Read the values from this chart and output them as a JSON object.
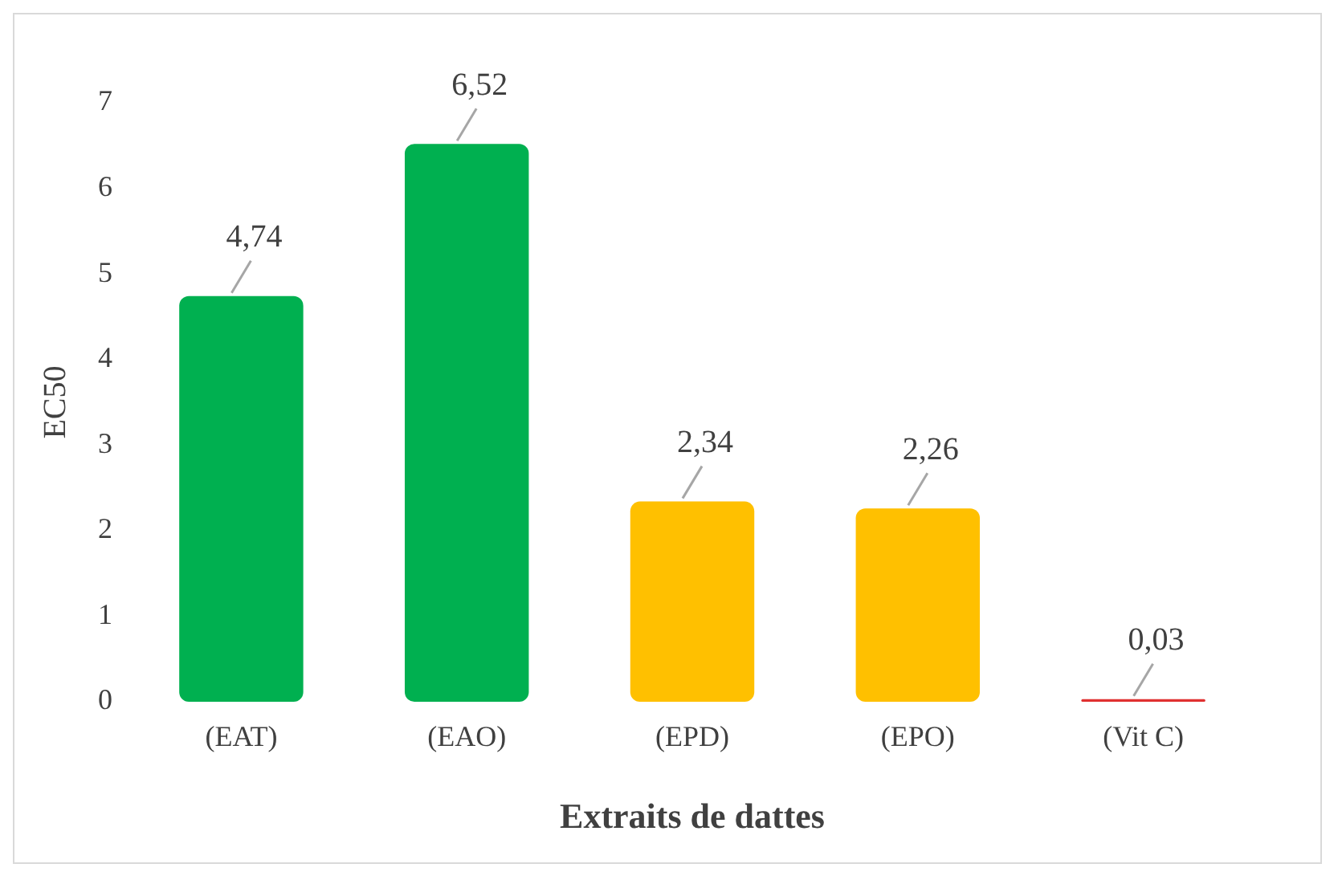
{
  "chart_data": {
    "type": "bar",
    "xlabel": "Extraits de dattes",
    "ylabel": "EC50",
    "categories": [
      "(EAT)",
      "(EAO)",
      "(EPD)",
      "(EPO)",
      "(Vit C)"
    ],
    "values": [
      4.74,
      6.52,
      2.34,
      2.26,
      0.03
    ],
    "value_labels": [
      "4,74",
      "6,52",
      "2,34",
      "2,26",
      "0,03"
    ],
    "colors": [
      "#00b050",
      "#00b050",
      "#ffc000",
      "#ffc000",
      "#e03030"
    ],
    "ylim": [
      0,
      7
    ],
    "yticks": [
      0,
      1,
      2,
      3,
      4,
      5,
      6,
      7
    ],
    "grid": false,
    "legend": false
  }
}
